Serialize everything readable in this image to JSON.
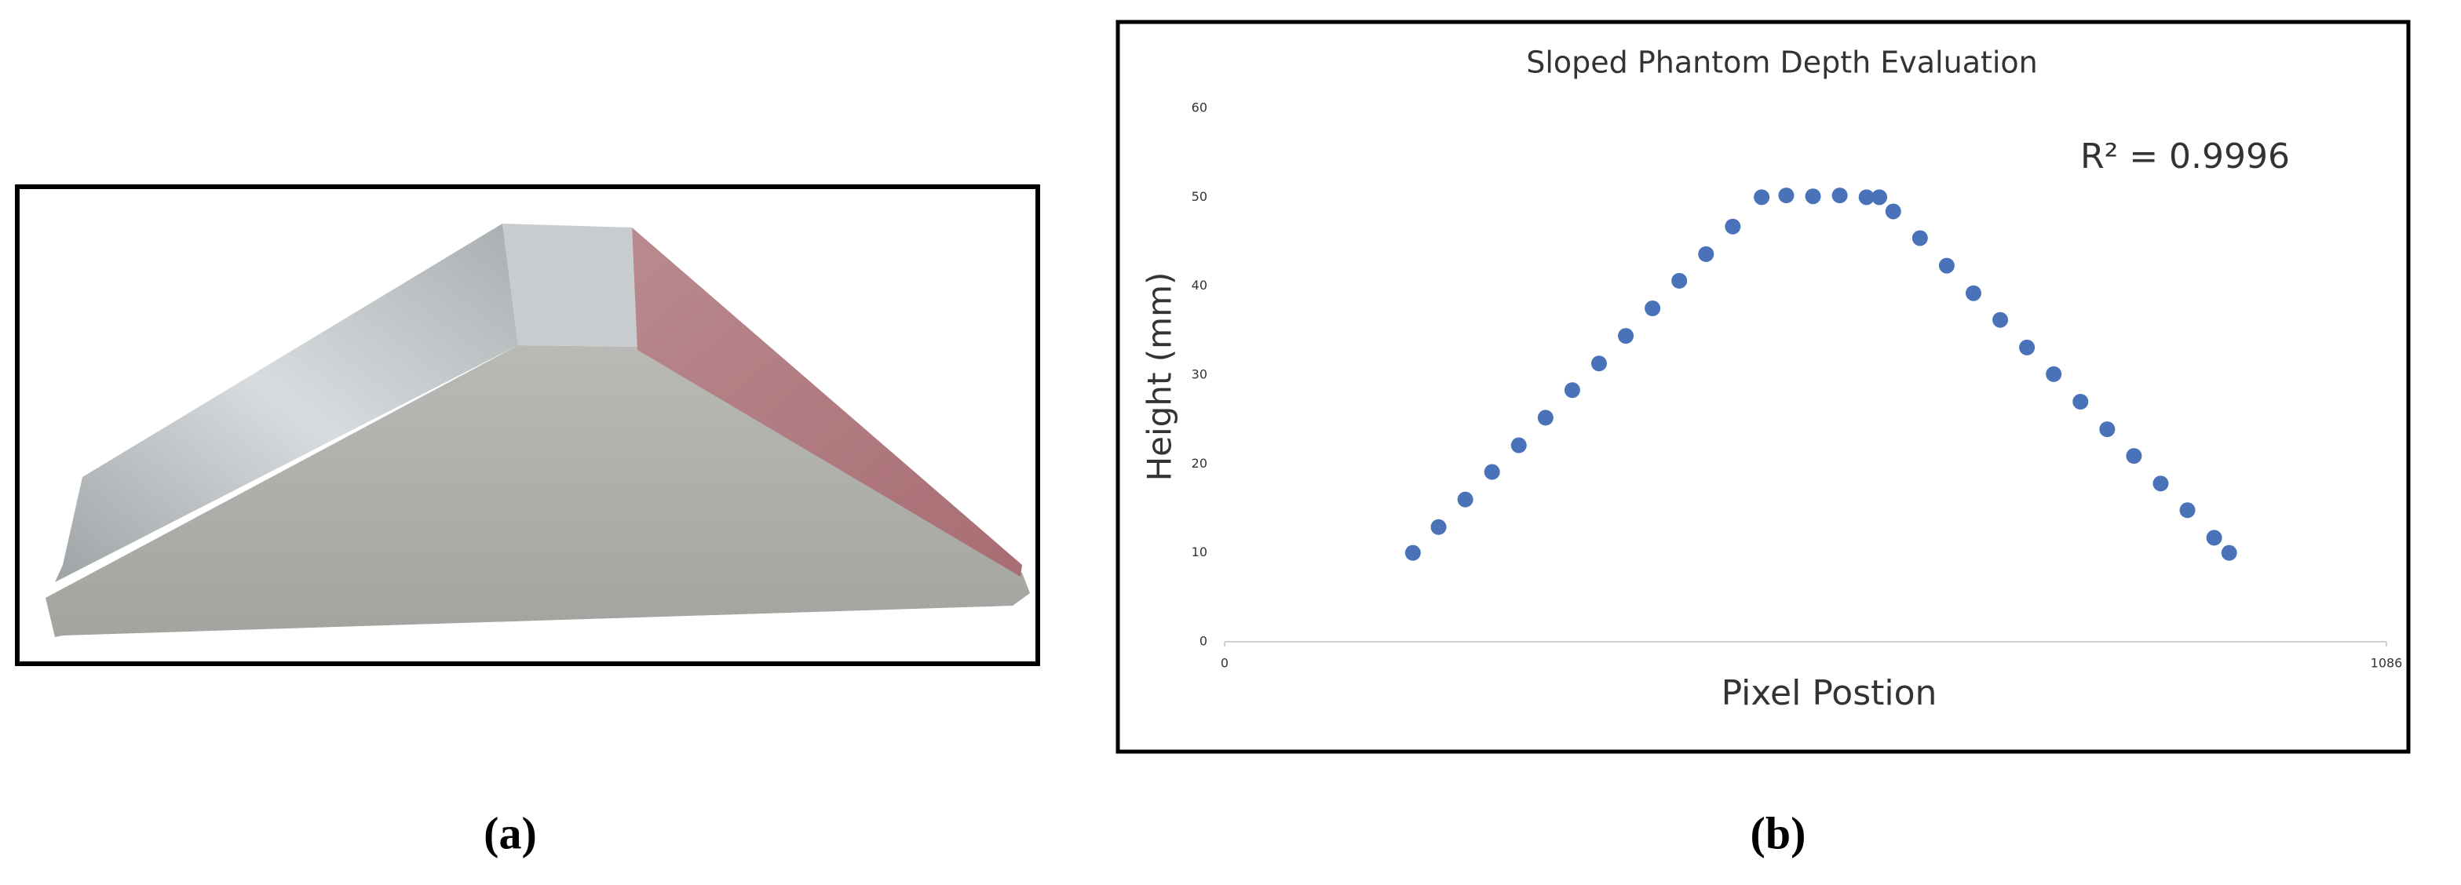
{
  "chart_data": {
    "type": "scatter",
    "title": "Sloped Phantom Depth Evaluation",
    "x_label": "Pixel Postion",
    "y_label": "Height (mm)",
    "annotation": "R² = 0.9996",
    "color": "#4a72b8",
    "grid": false,
    "xlim": [
      0,
      1086
    ],
    "xticks": [
      0,
      1086
    ],
    "ylim": [
      0,
      60
    ],
    "yticks": [
      0,
      10,
      20,
      30,
      40,
      50,
      60
    ],
    "x": [
      176,
      200,
      225,
      250,
      275,
      300,
      325,
      350,
      375,
      400,
      425,
      450,
      475,
      502,
      525,
      550,
      575,
      600,
      612,
      625,
      650,
      675,
      700,
      725,
      750,
      775,
      800,
      825,
      850,
      875,
      900,
      925,
      939
    ],
    "values": [
      10,
      12.9,
      16.0,
      19.1,
      22.1,
      25.2,
      28.3,
      31.3,
      34.4,
      37.5,
      40.6,
      43.6,
      46.7,
      50,
      50.2,
      50.1,
      50.2,
      50.0,
      50,
      48.4,
      45.4,
      42.3,
      39.2,
      36.2,
      33.1,
      30.1,
      27.0,
      23.9,
      20.9,
      17.8,
      14.8,
      11.7,
      10.0
    ]
  },
  "captions": [
    "(a)",
    "(b)"
  ]
}
